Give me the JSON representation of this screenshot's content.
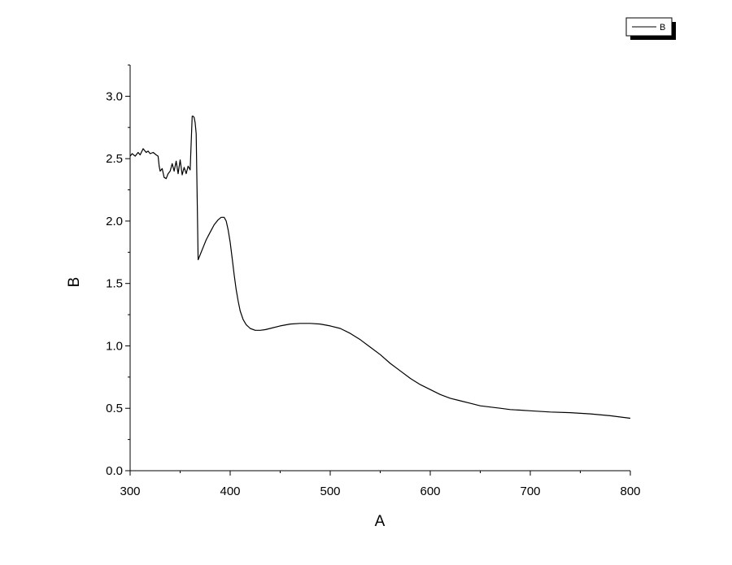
{
  "chart_data": {
    "type": "line",
    "xlabel": "A",
    "ylabel": "B",
    "xlim": [
      300,
      800
    ],
    "ylim": [
      0,
      3.25
    ],
    "x_ticks": [
      300,
      400,
      500,
      600,
      700,
      800
    ],
    "y_ticks": [
      0.0,
      0.5,
      1.0,
      1.5,
      2.0,
      2.5,
      3.0
    ],
    "x_tick_labels": [
      "300",
      "400",
      "500",
      "600",
      "700",
      "800"
    ],
    "y_tick_labels": [
      "0.0",
      "0.5",
      "1.0",
      "1.5",
      "2.0",
      "2.5",
      "3.0"
    ],
    "grid": false,
    "legend_position": "top-right",
    "series": [
      {
        "name": "B",
        "color": "#000000",
        "x": [
          300,
          302,
          305,
          308,
          310,
          313,
          316,
          318,
          320,
          323,
          326,
          328,
          329,
          330,
          332,
          334,
          336,
          338,
          340,
          342,
          344,
          346,
          348,
          350,
          352,
          354,
          356,
          358,
          360,
          362,
          363,
          364,
          365,
          366,
          367,
          368,
          370,
          373,
          376,
          380,
          384,
          388,
          391,
          394,
          396,
          398,
          400,
          402,
          404,
          406,
          408,
          410,
          413,
          416,
          420,
          425,
          430,
          435,
          440,
          450,
          460,
          470,
          480,
          490,
          500,
          510,
          520,
          530,
          540,
          550,
          560,
          570,
          580,
          590,
          600,
          610,
          620,
          630,
          640,
          650,
          660,
          670,
          680,
          690,
          700,
          720,
          740,
          760,
          780,
          800
        ],
        "y": [
          2.52,
          2.54,
          2.52,
          2.55,
          2.53,
          2.58,
          2.55,
          2.56,
          2.54,
          2.55,
          2.53,
          2.52,
          2.44,
          2.4,
          2.42,
          2.35,
          2.34,
          2.38,
          2.4,
          2.46,
          2.4,
          2.48,
          2.38,
          2.49,
          2.37,
          2.43,
          2.38,
          2.44,
          2.41,
          2.84,
          2.84,
          2.83,
          2.79,
          2.7,
          2.2,
          1.69,
          1.73,
          1.79,
          1.85,
          1.91,
          1.97,
          2.01,
          2.03,
          2.03,
          2.0,
          1.93,
          1.83,
          1.7,
          1.57,
          1.45,
          1.36,
          1.28,
          1.21,
          1.17,
          1.14,
          1.125,
          1.125,
          1.13,
          1.14,
          1.16,
          1.175,
          1.18,
          1.18,
          1.175,
          1.16,
          1.14,
          1.1,
          1.05,
          0.99,
          0.93,
          0.86,
          0.8,
          0.74,
          0.69,
          0.65,
          0.61,
          0.58,
          0.56,
          0.54,
          0.52,
          0.51,
          0.5,
          0.49,
          0.485,
          0.48,
          0.47,
          0.465,
          0.455,
          0.44,
          0.42
        ]
      }
    ]
  }
}
